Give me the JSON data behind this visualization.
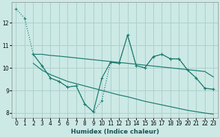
{
  "xlabel": "Humidex (Indice chaleur)",
  "ylabel": "",
  "xlim": [
    -0.5,
    23.5
  ],
  "ylim": [
    7.8,
    12.9
  ],
  "yticks": [
    8,
    9,
    10,
    11,
    12
  ],
  "xticks": [
    0,
    1,
    2,
    3,
    4,
    5,
    6,
    7,
    8,
    9,
    10,
    11,
    12,
    13,
    14,
    15,
    16,
    17,
    18,
    19,
    20,
    21,
    22,
    23
  ],
  "bg_color": "#cce9e5",
  "grid_color": "#aacfcc",
  "line_color": "#1a7a6e",
  "series": [
    {
      "x": [
        0,
        1,
        2,
        3,
        4,
        5,
        6,
        7,
        8,
        9,
        10,
        11,
        12,
        13,
        14,
        15,
        16,
        17,
        18,
        19,
        20,
        21,
        22,
        23
      ],
      "y": [
        12.6,
        12.2,
        10.6,
        10.1,
        9.55,
        9.4,
        9.15,
        9.2,
        8.4,
        8.05,
        8.55,
        10.25,
        10.2,
        11.45,
        10.1,
        10.0,
        10.5,
        10.6,
        10.4,
        10.4,
        9.9,
        9.55,
        9.1,
        9.05
      ],
      "style": "dotted",
      "marker": "+"
    },
    {
      "x": [
        2,
        3,
        4,
        5,
        6,
        7,
        8,
        9,
        10,
        11,
        12,
        13,
        14,
        15,
        16,
        17,
        18,
        19,
        20,
        21,
        22,
        23
      ],
      "y": [
        10.6,
        10.6,
        10.55,
        10.52,
        10.48,
        10.44,
        10.4,
        10.36,
        10.32,
        10.28,
        10.24,
        10.2,
        10.16,
        10.12,
        10.08,
        10.04,
        10.0,
        9.96,
        9.92,
        9.88,
        9.84,
        9.6
      ],
      "style": "solid",
      "marker": null
    },
    {
      "x": [
        2,
        3,
        4,
        5,
        6,
        7,
        8,
        9,
        10,
        11,
        12,
        13,
        14,
        15,
        16,
        17,
        18,
        19,
        20,
        21,
        22,
        23
      ],
      "y": [
        10.6,
        10.1,
        9.55,
        9.4,
        9.15,
        9.2,
        8.4,
        8.05,
        9.55,
        10.25,
        10.2,
        11.45,
        10.1,
        10.0,
        10.5,
        10.6,
        10.4,
        10.4,
        9.9,
        9.55,
        9.1,
        9.05
      ],
      "style": "solid",
      "marker": "+"
    },
    {
      "x": [
        2,
        3,
        4,
        5,
        6,
        7,
        8,
        9,
        10,
        11,
        12,
        13,
        14,
        15,
        16,
        17,
        18,
        19,
        20,
        21,
        22,
        23
      ],
      "y": [
        10.2,
        9.9,
        9.7,
        9.55,
        9.4,
        9.3,
        9.2,
        9.1,
        9.0,
        8.9,
        8.8,
        8.72,
        8.62,
        8.52,
        8.44,
        8.36,
        8.28,
        8.2,
        8.12,
        8.06,
        8.0,
        7.95
      ],
      "style": "solid",
      "marker": null
    }
  ]
}
